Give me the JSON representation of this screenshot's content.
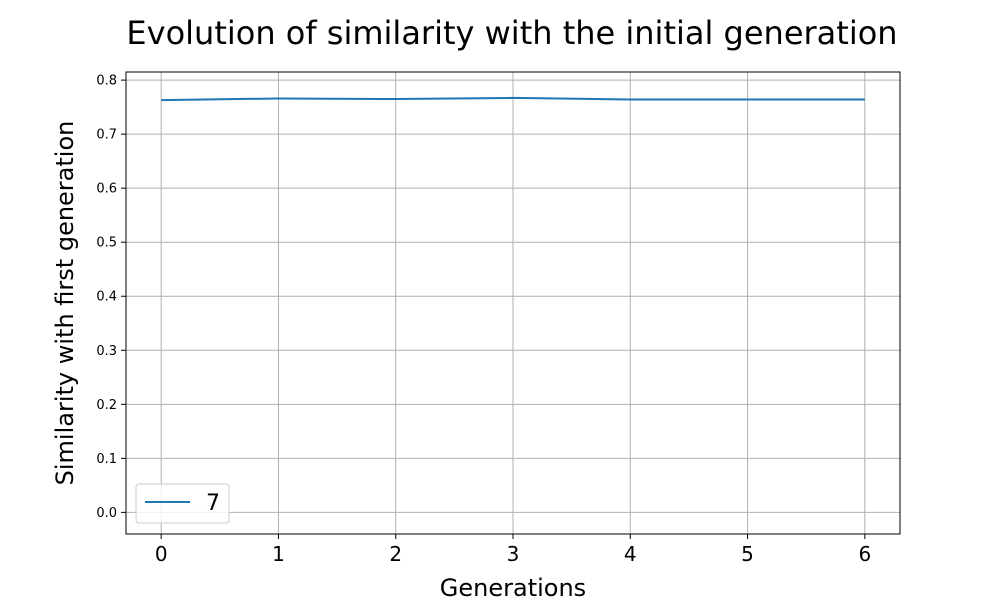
{
  "chart_data": {
    "type": "line",
    "title": "Evolution of similarity with the initial generation",
    "xlabel": "Generations",
    "ylabel": "Similarity with first generation",
    "x": [
      0,
      1,
      2,
      3,
      4,
      5,
      6
    ],
    "series": [
      {
        "name": "7",
        "values": [
          0.763,
          0.766,
          0.765,
          0.767,
          0.764,
          0.764,
          0.764
        ],
        "color": "#1f77b4"
      }
    ],
    "xticks": [
      "0",
      "1",
      "2",
      "3",
      "4",
      "5",
      "6"
    ],
    "yticks": [
      "0.0",
      "0.1",
      "0.2",
      "0.3",
      "0.4",
      "0.5",
      "0.6",
      "0.7",
      "0.8"
    ],
    "xlim": [
      -0.3,
      6.3
    ],
    "ylim": [
      -0.04,
      0.815
    ],
    "grid": true,
    "legend_position": "lower-left"
  }
}
